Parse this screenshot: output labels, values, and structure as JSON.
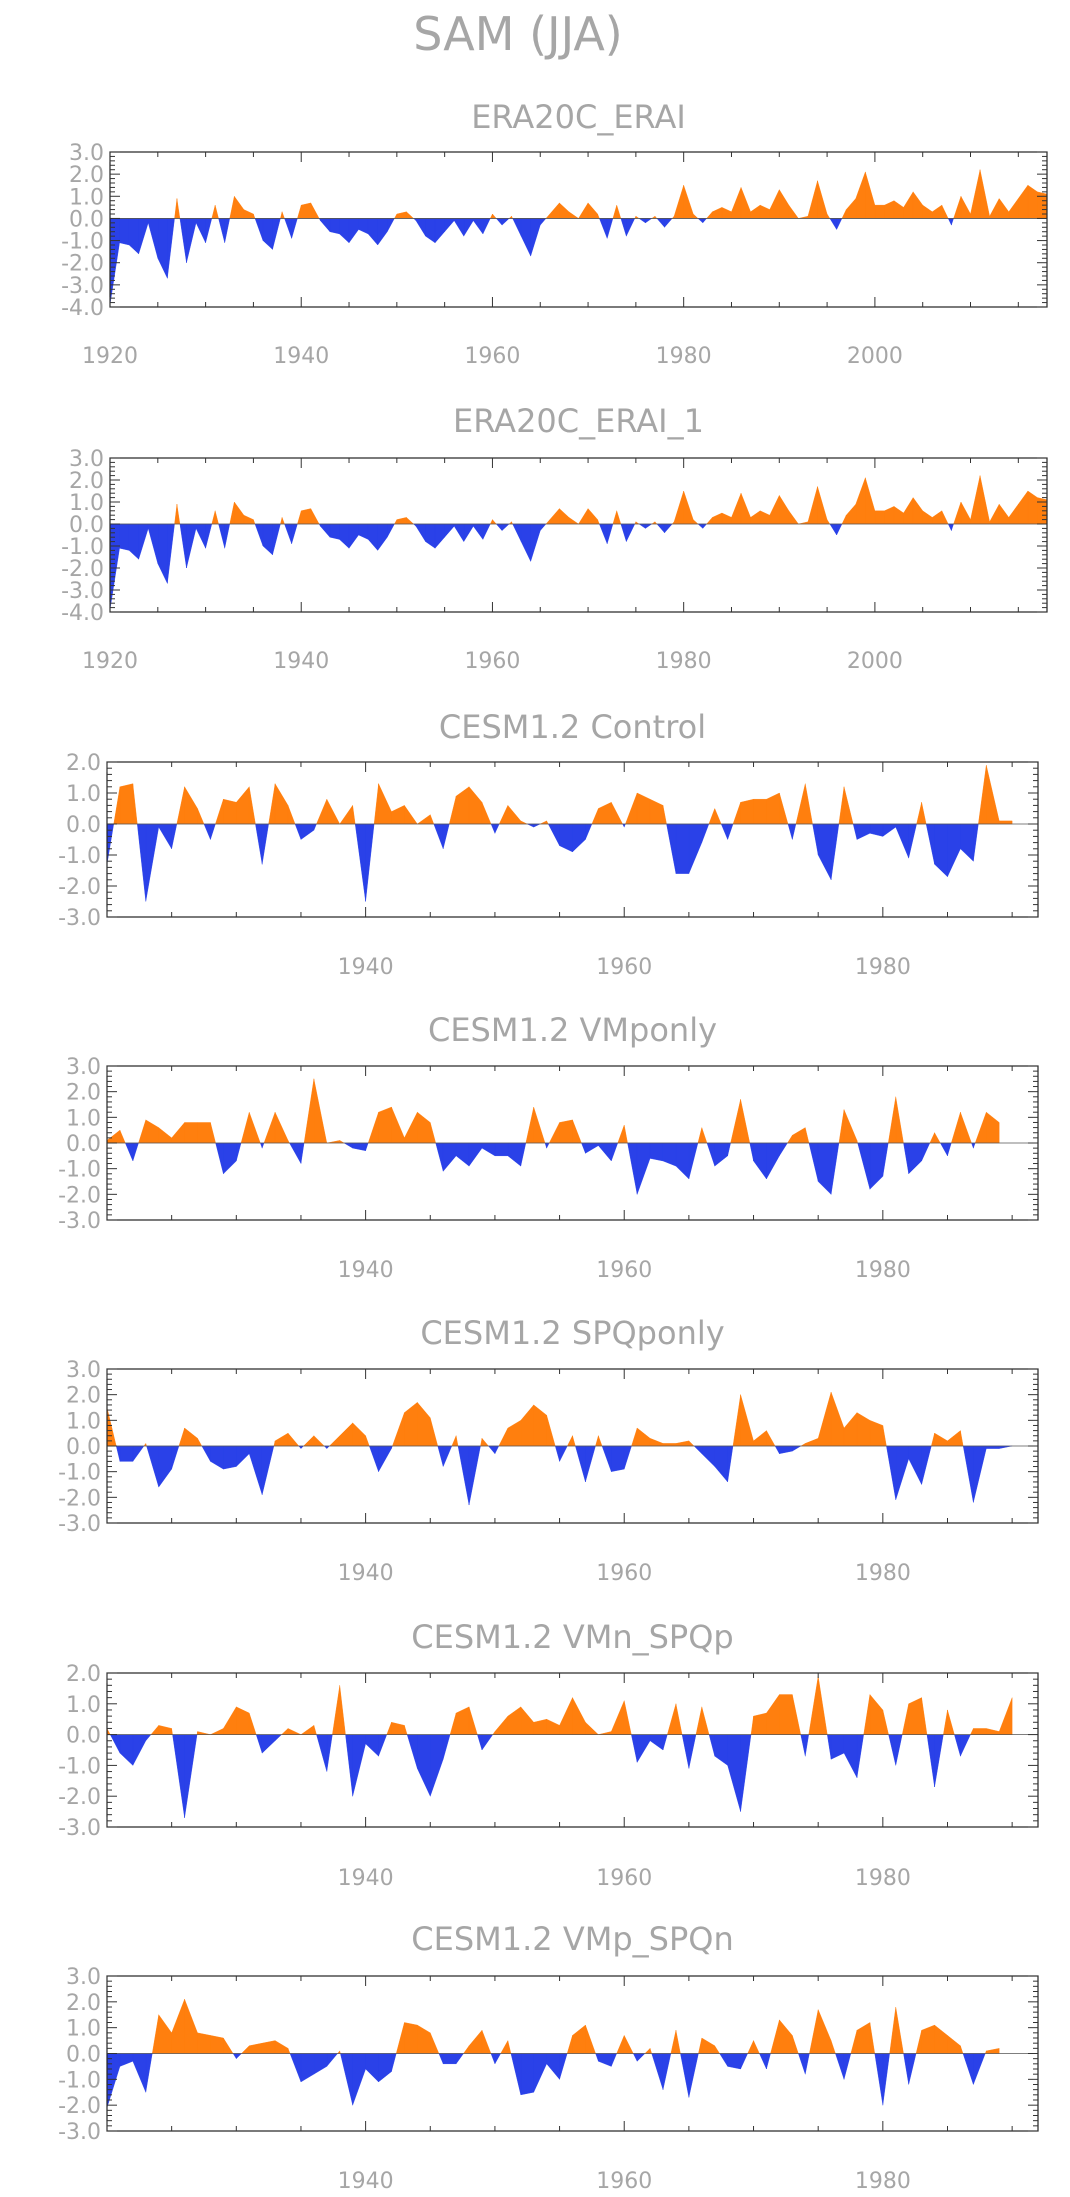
{
  "title": "SAM (JJA)",
  "colors": {
    "positive": "#ff7f0e",
    "negative": "#2a41e8"
  },
  "chart_data": [
    {
      "type": "area",
      "title": "ERA20C_ERAI",
      "xlim": [
        1920,
        2018
      ],
      "ylim": [
        -4.0,
        3.0
      ],
      "xticks": [
        "1920",
        "1940",
        "1960",
        "1980",
        "2000"
      ],
      "yticks": [
        "3.0",
        "2.0",
        "1.0",
        "0.0",
        "-1.0",
        "-2.0",
        "-3.0",
        "-4.0"
      ],
      "x_start": 1920,
      "values": [
        -3.9,
        -1.1,
        -1.2,
        -1.6,
        -0.2,
        -1.8,
        -2.7,
        0.9,
        -2.0,
        -0.2,
        -1.1,
        0.6,
        -1.1,
        1.0,
        0.4,
        0.2,
        -1.0,
        -1.4,
        0.3,
        -0.9,
        0.6,
        0.7,
        -0.1,
        -0.6,
        -0.7,
        -1.1,
        -0.5,
        -0.7,
        -1.2,
        -0.6,
        0.2,
        0.3,
        -0.1,
        -0.8,
        -1.1,
        -0.6,
        -0.1,
        -0.8,
        -0.1,
        -0.7,
        0.2,
        -0.3,
        0.1,
        -0.8,
        -1.7,
        -0.3,
        0.2,
        0.7,
        0.3,
        0.0,
        0.7,
        0.2,
        -0.9,
        0.6,
        -0.8,
        0.1,
        -0.2,
        0.1,
        -0.4,
        0.1,
        1.5,
        0.2,
        -0.2,
        0.3,
        0.5,
        0.3,
        1.4,
        0.3,
        0.6,
        0.4,
        1.3,
        0.6,
        0.0,
        0.1,
        1.7,
        0.2,
        -0.5,
        0.4,
        0.9,
        2.1,
        0.6,
        0.6,
        0.8,
        0.5,
        1.2,
        0.6,
        0.3,
        0.6,
        -0.3,
        1.0,
        0.2,
        2.2,
        0.1,
        0.9,
        0.3,
        0.9,
        1.5,
        1.2,
        1.1
      ]
    },
    {
      "type": "area",
      "title": "ERA20C_ERAI_1",
      "xlim": [
        1920,
        2018
      ],
      "ylim": [
        -4.0,
        3.0
      ],
      "xticks": [
        "1920",
        "1940",
        "1960",
        "1980",
        "2000"
      ],
      "yticks": [
        "3.0",
        "2.0",
        "1.0",
        "0.0",
        "-1.0",
        "-2.0",
        "-3.0",
        "-4.0"
      ],
      "x_start": 1920,
      "values": [
        -3.9,
        -1.1,
        -1.2,
        -1.6,
        -0.2,
        -1.8,
        -2.7,
        0.9,
        -2.0,
        -0.2,
        -1.1,
        0.6,
        -1.1,
        1.0,
        0.4,
        0.2,
        -1.0,
        -1.4,
        0.3,
        -0.9,
        0.6,
        0.7,
        -0.1,
        -0.6,
        -0.7,
        -1.1,
        -0.5,
        -0.7,
        -1.2,
        -0.6,
        0.2,
        0.3,
        -0.1,
        -0.8,
        -1.1,
        -0.6,
        -0.1,
        -0.8,
        -0.1,
        -0.7,
        0.2,
        -0.3,
        0.1,
        -0.8,
        -1.7,
        -0.3,
        0.2,
        0.7,
        0.3,
        0.0,
        0.7,
        0.2,
        -0.9,
        0.6,
        -0.8,
        0.1,
        -0.2,
        0.1,
        -0.4,
        0.1,
        1.5,
        0.2,
        -0.2,
        0.3,
        0.5,
        0.3,
        1.4,
        0.3,
        0.6,
        0.4,
        1.3,
        0.6,
        0.0,
        0.1,
        1.7,
        0.2,
        -0.5,
        0.4,
        0.9,
        2.1,
        0.6,
        0.6,
        0.8,
        0.5,
        1.2,
        0.6,
        0.3,
        0.6,
        -0.3,
        1.0,
        0.2,
        2.2,
        0.1,
        0.9,
        0.3,
        0.9,
        1.5,
        1.2,
        1.1
      ]
    },
    {
      "type": "area",
      "title": "CESM1.2 Control",
      "xlim": [
        1920,
        1992
      ],
      "ylim": [
        -3.0,
        2.0
      ],
      "xticks": [
        "1940",
        "1960",
        "1980"
      ],
      "yticks": [
        "2.0",
        "1.0",
        "0.0",
        "-1.0",
        "-2.0",
        "-3.0"
      ],
      "x_start": 1920,
      "values": [
        -1.3,
        1.2,
        1.3,
        -2.5,
        -0.1,
        -0.8,
        1.2,
        0.5,
        -0.5,
        0.8,
        0.7,
        1.2,
        -1.3,
        1.3,
        0.6,
        -0.5,
        -0.2,
        0.8,
        0.0,
        0.6,
        -2.5,
        1.3,
        0.4,
        0.6,
        0.0,
        0.3,
        -0.8,
        0.9,
        1.2,
        0.7,
        -0.3,
        0.6,
        0.1,
        -0.1,
        0.1,
        -0.7,
        -0.9,
        -0.5,
        0.5,
        0.7,
        -0.1,
        1.0,
        0.8,
        0.6,
        -1.6,
        -1.6,
        -0.6,
        0.5,
        -0.5,
        0.7,
        0.8,
        0.8,
        1.0,
        -0.5,
        1.3,
        -1.0,
        -1.8,
        1.2,
        -0.5,
        -0.3,
        -0.4,
        -0.1,
        -1.1,
        0.7,
        -1.3,
        -1.7,
        -0.8,
        -1.2,
        1.9,
        0.1,
        0.1
      ]
    },
    {
      "type": "area",
      "title": "CESM1.2 VMponly",
      "xlim": [
        1920,
        1992
      ],
      "ylim": [
        -3.0,
        3.0
      ],
      "xticks": [
        "1940",
        "1960",
        "1980"
      ],
      "yticks": [
        "3.0",
        "2.0",
        "1.0",
        "0.0",
        "-1.0",
        "-2.0",
        "-3.0"
      ],
      "x_start": 1920,
      "values": [
        0.1,
        0.5,
        -0.7,
        0.9,
        0.6,
        0.2,
        0.8,
        0.8,
        0.8,
        -1.2,
        -0.7,
        1.2,
        -0.2,
        1.2,
        0.1,
        -0.8,
        2.5,
        0.0,
        0.1,
        -0.2,
        -0.3,
        1.2,
        1.4,
        0.2,
        1.2,
        0.8,
        -1.1,
        -0.5,
        -0.9,
        -0.2,
        -0.5,
        -0.5,
        -0.9,
        1.4,
        -0.2,
        0.8,
        0.9,
        -0.4,
        -0.1,
        -0.7,
        0.7,
        -2.0,
        -0.6,
        -0.7,
        -0.9,
        -1.4,
        0.6,
        -0.9,
        -0.5,
        1.7,
        -0.7,
        -1.4,
        -0.5,
        0.3,
        0.6,
        -1.5,
        -2.0,
        1.3,
        0.1,
        -1.8,
        -1.3,
        1.8,
        -1.2,
        -0.7,
        0.4,
        -0.5,
        1.2,
        -0.2,
        1.2,
        0.8
      ]
    },
    {
      "type": "area",
      "title": "CESM1.2 SPQponly",
      "xlim": [
        1920,
        1992
      ],
      "ylim": [
        -3.0,
        3.0
      ],
      "xticks": [
        "1940",
        "1960",
        "1980"
      ],
      "yticks": [
        "3.0",
        "2.0",
        "1.0",
        "0.0",
        "-1.0",
        "-2.0",
        "-3.0"
      ],
      "x_start": 1920,
      "values": [
        1.5,
        -0.6,
        -0.6,
        0.1,
        -1.6,
        -0.9,
        0.7,
        0.3,
        -0.6,
        -0.9,
        -0.8,
        -0.3,
        -1.9,
        0.2,
        0.5,
        -0.1,
        0.4,
        -0.1,
        0.4,
        0.9,
        0.4,
        -1.0,
        -0.1,
        1.3,
        1.7,
        1.1,
        -0.8,
        0.4,
        -2.3,
        0.3,
        -0.3,
        0.7,
        1.0,
        1.6,
        1.2,
        -0.6,
        0.4,
        -1.4,
        0.4,
        -1.0,
        -0.9,
        0.7,
        0.3,
        0.1,
        0.1,
        0.2,
        -0.3,
        -0.8,
        -1.4,
        2.0,
        0.2,
        0.6,
        -0.3,
        -0.2,
        0.1,
        0.3,
        2.1,
        0.7,
        1.3,
        1.0,
        0.8,
        -2.1,
        -0.5,
        -1.5,
        0.5,
        0.2,
        0.6,
        -2.2,
        -0.1,
        -0.1,
        0.0
      ]
    },
    {
      "type": "area",
      "title": "CESM1.2 VMn_SPQp",
      "xlim": [
        1920,
        1992
      ],
      "ylim": [
        -3.0,
        2.0
      ],
      "xticks": [
        "1940",
        "1960",
        "1980"
      ],
      "yticks": [
        "2.0",
        "1.0",
        "0.0",
        "-1.0",
        "-2.0",
        "-3.0"
      ],
      "x_start": 1920,
      "values": [
        0.2,
        -0.6,
        -1.0,
        -0.2,
        0.3,
        0.2,
        -2.7,
        0.1,
        0.0,
        0.2,
        0.9,
        0.7,
        -0.6,
        -0.2,
        0.2,
        0.0,
        0.3,
        -1.2,
        1.6,
        -2.0,
        -0.3,
        -0.7,
        0.4,
        0.3,
        -1.1,
        -2.0,
        -0.8,
        0.7,
        0.9,
        -0.5,
        0.1,
        0.6,
        0.9,
        0.4,
        0.5,
        0.3,
        1.2,
        0.4,
        0.0,
        0.1,
        1.1,
        -0.9,
        -0.2,
        -0.5,
        1.0,
        -1.1,
        0.9,
        -0.7,
        -1.0,
        -2.5,
        0.6,
        0.7,
        1.3,
        1.3,
        -0.7,
        1.9,
        -0.8,
        -0.6,
        -1.4,
        1.3,
        0.8,
        -1.0,
        1.0,
        1.2,
        -1.7,
        0.8,
        -0.7,
        0.2,
        0.2,
        0.1,
        1.2
      ]
    },
    {
      "type": "area",
      "title": "CESM1.2 VMp_SPQn",
      "xlim": [
        1920,
        1992
      ],
      "ylim": [
        -3.0,
        3.0
      ],
      "xticks": [
        "1940",
        "1960",
        "1980"
      ],
      "yticks": [
        "3.0",
        "2.0",
        "1.0",
        "0.0",
        "-1.0",
        "-2.0",
        "-3.0"
      ],
      "x_start": 1920,
      "values": [
        -2.1,
        -0.5,
        -0.3,
        -1.5,
        1.5,
        0.8,
        2.1,
        0.8,
        0.7,
        0.6,
        -0.2,
        0.3,
        0.4,
        0.5,
        0.2,
        -1.1,
        -0.8,
        -0.5,
        0.1,
        -2.0,
        -0.6,
        -1.1,
        -0.7,
        1.2,
        1.1,
        0.8,
        -0.4,
        -0.4,
        0.3,
        0.9,
        -0.4,
        0.5,
        -1.6,
        -1.5,
        -0.4,
        -1.0,
        0.7,
        1.1,
        -0.3,
        -0.5,
        0.7,
        -0.3,
        0.2,
        -1.4,
        0.9,
        -1.7,
        0.6,
        0.3,
        -0.5,
        -0.6,
        0.5,
        -0.6,
        1.3,
        0.7,
        -0.8,
        1.7,
        0.5,
        -1.0,
        0.9,
        1.2,
        -2.0,
        1.8,
        -1.2,
        0.9,
        1.1,
        0.7,
        0.3,
        -1.2,
        0.1,
        0.2
      ]
    }
  ]
}
